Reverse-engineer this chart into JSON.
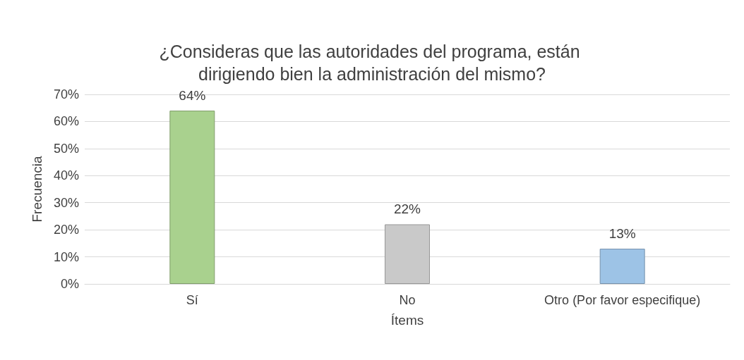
{
  "chart_data": {
    "type": "bar",
    "title": "¿Consideras que las autoridades del programa, están dirigiendo bien la administración del mismo?",
    "xlabel": "Ítems",
    "ylabel": "Frecuencia",
    "categories": [
      "Sí",
      "No",
      "Otro (Por favor especifique)"
    ],
    "values": [
      64,
      22,
      13
    ],
    "value_labels": [
      "64%",
      "22%",
      "13%"
    ],
    "colors": [
      "#a9d18e",
      "#c9c9c9",
      "#9dc3e6"
    ],
    "ylim": [
      0,
      70
    ],
    "yticks": [
      {
        "value": 0,
        "label": "0%"
      },
      {
        "value": 10,
        "label": "10%"
      },
      {
        "value": 20,
        "label": "20%"
      },
      {
        "value": 30,
        "label": "30%"
      },
      {
        "value": 40,
        "label": "40%"
      },
      {
        "value": 50,
        "label": "50%"
      },
      {
        "value": 60,
        "label": "60%"
      },
      {
        "value": 70,
        "label": "70%"
      }
    ],
    "grid": "y"
  }
}
